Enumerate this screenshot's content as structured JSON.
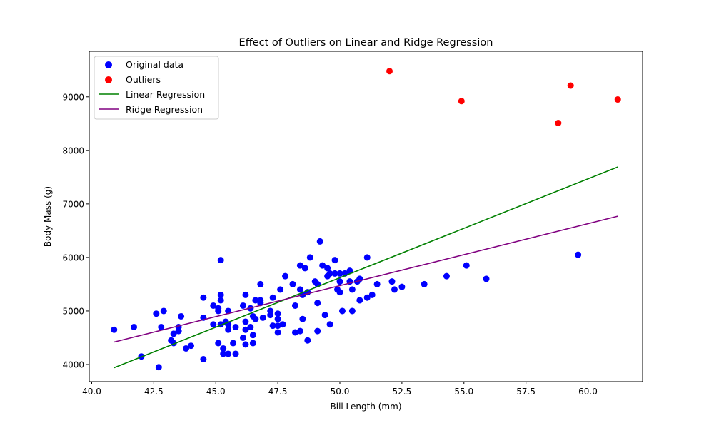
{
  "chart_data": {
    "type": "scatter",
    "title": "Effect of Outliers on Linear and Ridge Regression",
    "xlabel": "Bill Length (mm)",
    "ylabel": "Body Mass (g)",
    "xlim": [
      39.9,
      62.2
    ],
    "ylim": [
      3680,
      9850
    ],
    "xticks": [
      40.0,
      42.5,
      45.0,
      47.5,
      50.0,
      52.5,
      55.0,
      57.5,
      60.0
    ],
    "xtick_labels": [
      "40.0",
      "42.5",
      "45.0",
      "47.5",
      "50.0",
      "52.5",
      "55.0",
      "57.5",
      "60.0"
    ],
    "yticks": [
      4000,
      5000,
      6000,
      7000,
      8000,
      9000
    ],
    "ytick_labels": [
      "4000",
      "5000",
      "6000",
      "7000",
      "8000",
      "9000"
    ],
    "grid": false,
    "legend_position": "top-left",
    "series": [
      {
        "name": "Original data",
        "kind": "scatter",
        "color": "#0000ff",
        "points": [
          [
            40.9,
            4650
          ],
          [
            41.7,
            4700
          ],
          [
            42.0,
            4150
          ],
          [
            42.6,
            4950
          ],
          [
            42.7,
            3950
          ],
          [
            42.8,
            4700
          ],
          [
            42.9,
            5000
          ],
          [
            43.2,
            4450
          ],
          [
            43.3,
            4575
          ],
          [
            43.3,
            4400
          ],
          [
            43.5,
            4625
          ],
          [
            43.5,
            4700
          ],
          [
            43.6,
            4900
          ],
          [
            43.8,
            4300
          ],
          [
            44.0,
            4350
          ],
          [
            44.5,
            5250
          ],
          [
            44.5,
            4875
          ],
          [
            44.5,
            4100
          ],
          [
            44.9,
            5100
          ],
          [
            44.9,
            4750
          ],
          [
            45.1,
            5050
          ],
          [
            45.1,
            5000
          ],
          [
            45.1,
            4400
          ],
          [
            45.2,
            5300
          ],
          [
            45.2,
            5200
          ],
          [
            45.2,
            5950
          ],
          [
            45.2,
            4750
          ],
          [
            45.3,
            4300
          ],
          [
            45.3,
            4200
          ],
          [
            45.4,
            4800
          ],
          [
            45.5,
            4750
          ],
          [
            45.5,
            5000
          ],
          [
            45.5,
            4650
          ],
          [
            45.5,
            4200
          ],
          [
            45.7,
            4400
          ],
          [
            45.8,
            4700
          ],
          [
            45.8,
            4200
          ],
          [
            46.1,
            5100
          ],
          [
            46.2,
            5300
          ],
          [
            46.2,
            4800
          ],
          [
            46.2,
            4650
          ],
          [
            46.2,
            4375
          ],
          [
            46.1,
            4500
          ],
          [
            46.4,
            5050
          ],
          [
            46.4,
            4700
          ],
          [
            46.5,
            4550
          ],
          [
            46.5,
            4900
          ],
          [
            46.5,
            4400
          ],
          [
            46.6,
            5200
          ],
          [
            46.6,
            4850
          ],
          [
            46.8,
            5500
          ],
          [
            46.8,
            5200
          ],
          [
            46.8,
            5150
          ],
          [
            46.9,
            4875
          ],
          [
            47.2,
            5000
          ],
          [
            47.2,
            4925
          ],
          [
            47.3,
            5250
          ],
          [
            47.3,
            4725
          ],
          [
            47.5,
            4850
          ],
          [
            47.5,
            4950
          ],
          [
            47.5,
            4600
          ],
          [
            47.5,
            4725
          ],
          [
            47.6,
            5400
          ],
          [
            47.7,
            4750
          ],
          [
            47.8,
            5650
          ],
          [
            48.1,
            5500
          ],
          [
            48.2,
            5100
          ],
          [
            48.2,
            4600
          ],
          [
            48.4,
            5850
          ],
          [
            48.4,
            5400
          ],
          [
            48.4,
            4625
          ],
          [
            48.5,
            5300
          ],
          [
            48.5,
            4850
          ],
          [
            48.6,
            5800
          ],
          [
            48.7,
            4450
          ],
          [
            48.7,
            5350
          ],
          [
            48.8,
            6000
          ],
          [
            49.0,
            5550
          ],
          [
            49.1,
            5500
          ],
          [
            49.1,
            5150
          ],
          [
            49.1,
            4625
          ],
          [
            49.2,
            6300
          ],
          [
            49.3,
            5850
          ],
          [
            49.4,
            4925
          ],
          [
            49.5,
            5800
          ],
          [
            49.5,
            5650
          ],
          [
            49.6,
            4750
          ],
          [
            49.6,
            5700
          ],
          [
            49.8,
            5950
          ],
          [
            49.8,
            5700
          ],
          [
            49.9,
            5400
          ],
          [
            50.0,
            5700
          ],
          [
            50.0,
            5550
          ],
          [
            50.0,
            5350
          ],
          [
            50.1,
            5000
          ],
          [
            50.2,
            5700
          ],
          [
            50.4,
            5750
          ],
          [
            50.4,
            5550
          ],
          [
            50.5,
            5400
          ],
          [
            50.5,
            5000
          ],
          [
            50.7,
            5550
          ],
          [
            50.8,
            5600
          ],
          [
            50.8,
            5200
          ],
          [
            51.1,
            6000
          ],
          [
            51.1,
            5250
          ],
          [
            51.3,
            5300
          ],
          [
            51.5,
            5500
          ],
          [
            52.1,
            5550
          ],
          [
            52.2,
            5400
          ],
          [
            52.5,
            5450
          ],
          [
            53.4,
            5500
          ],
          [
            54.3,
            5650
          ],
          [
            55.1,
            5850
          ],
          [
            55.9,
            5600
          ],
          [
            59.6,
            6050
          ]
        ]
      },
      {
        "name": "Outliers",
        "kind": "scatter",
        "color": "#ff0000",
        "points": [
          [
            52.0,
            9480
          ],
          [
            54.9,
            8920
          ],
          [
            58.8,
            8510
          ],
          [
            59.3,
            9210
          ],
          [
            61.2,
            8950
          ]
        ]
      },
      {
        "name": "Linear Regression",
        "kind": "line",
        "color": "#008000",
        "points": [
          [
            40.9,
            3940
          ],
          [
            61.2,
            7690
          ]
        ]
      },
      {
        "name": "Ridge Regression",
        "kind": "line",
        "color": "#800080",
        "points": [
          [
            40.9,
            4420
          ],
          [
            61.2,
            6770
          ]
        ]
      }
    ]
  }
}
